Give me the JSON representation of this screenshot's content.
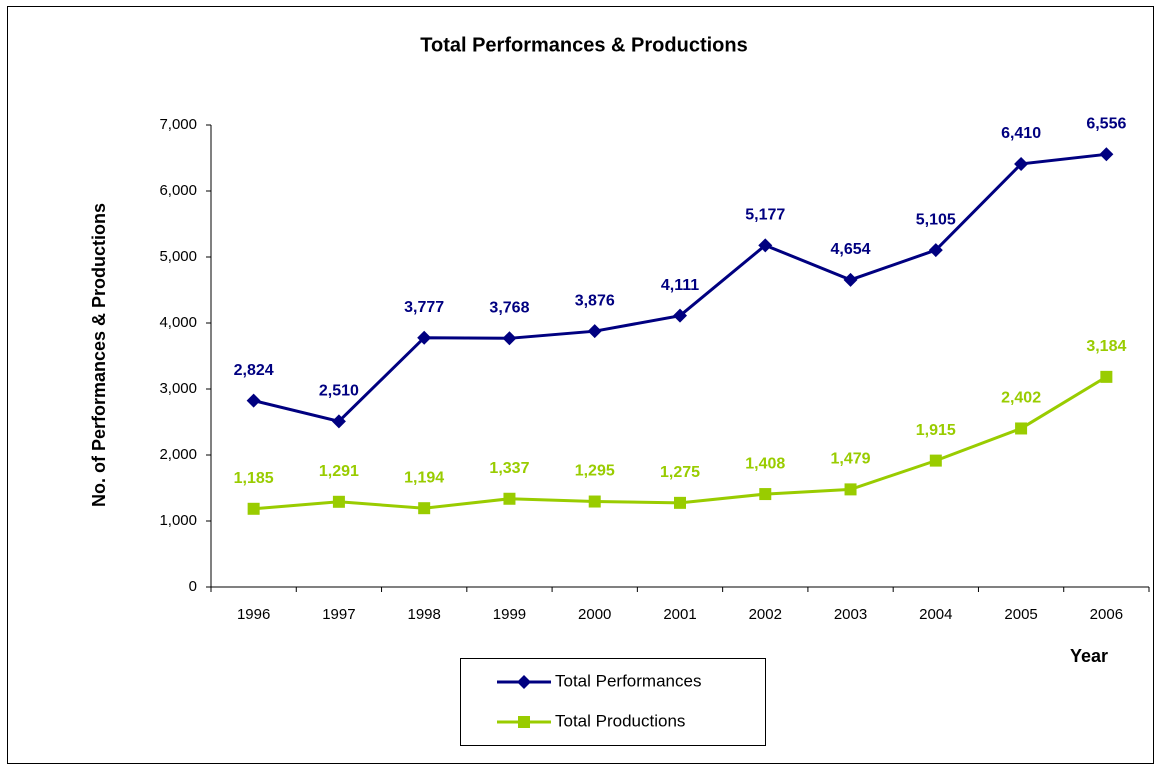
{
  "chart_data": {
    "type": "line",
    "title": "Total Performances & Productions",
    "y_label": "No. of Performances & Productions",
    "x_label": "Year",
    "categories": [
      "1996",
      "1997",
      "1998",
      "1999",
      "2000",
      "2001",
      "2002",
      "2003",
      "2004",
      "2005",
      "2006"
    ],
    "series": [
      {
        "name": "Total Performances",
        "color": "#000080",
        "marker": "diamond",
        "values": [
          2824,
          2510,
          3777,
          3768,
          3876,
          4111,
          5177,
          4654,
          5105,
          6410,
          6556
        ],
        "value_labels": [
          "2,824",
          "2,510",
          "3,777",
          "3,768",
          "3,876",
          "4,111",
          "5,177",
          "4,654",
          "5,105",
          "6,410",
          "6,556"
        ]
      },
      {
        "name": "Total Productions",
        "color": "#99cc00",
        "marker": "square",
        "values": [
          1185,
          1291,
          1194,
          1337,
          1295,
          1275,
          1408,
          1479,
          1915,
          2402,
          3184
        ],
        "value_labels": [
          "1,185",
          "1,291",
          "1,194",
          "1,337",
          "1,295",
          "1,275",
          "1,408",
          "1,479",
          "1,915",
          "2,402",
          "3,184"
        ]
      }
    ],
    "ylim": [
      0,
      7000
    ],
    "yticks": [
      0,
      {
        "value": 1000,
        "label": "1,000"
      },
      {
        "value": 2000,
        "label": "2,000"
      },
      {
        "value": 3000,
        "label": "3,000"
      },
      {
        "value": 4000,
        "label": "4,000"
      },
      {
        "value": 5000,
        "label": "5,000"
      },
      {
        "value": 6000,
        "label": "6,000"
      },
      {
        "value": 7000,
        "label": "7,000"
      }
    ],
    "grid": false,
    "legend": "bottom"
  }
}
